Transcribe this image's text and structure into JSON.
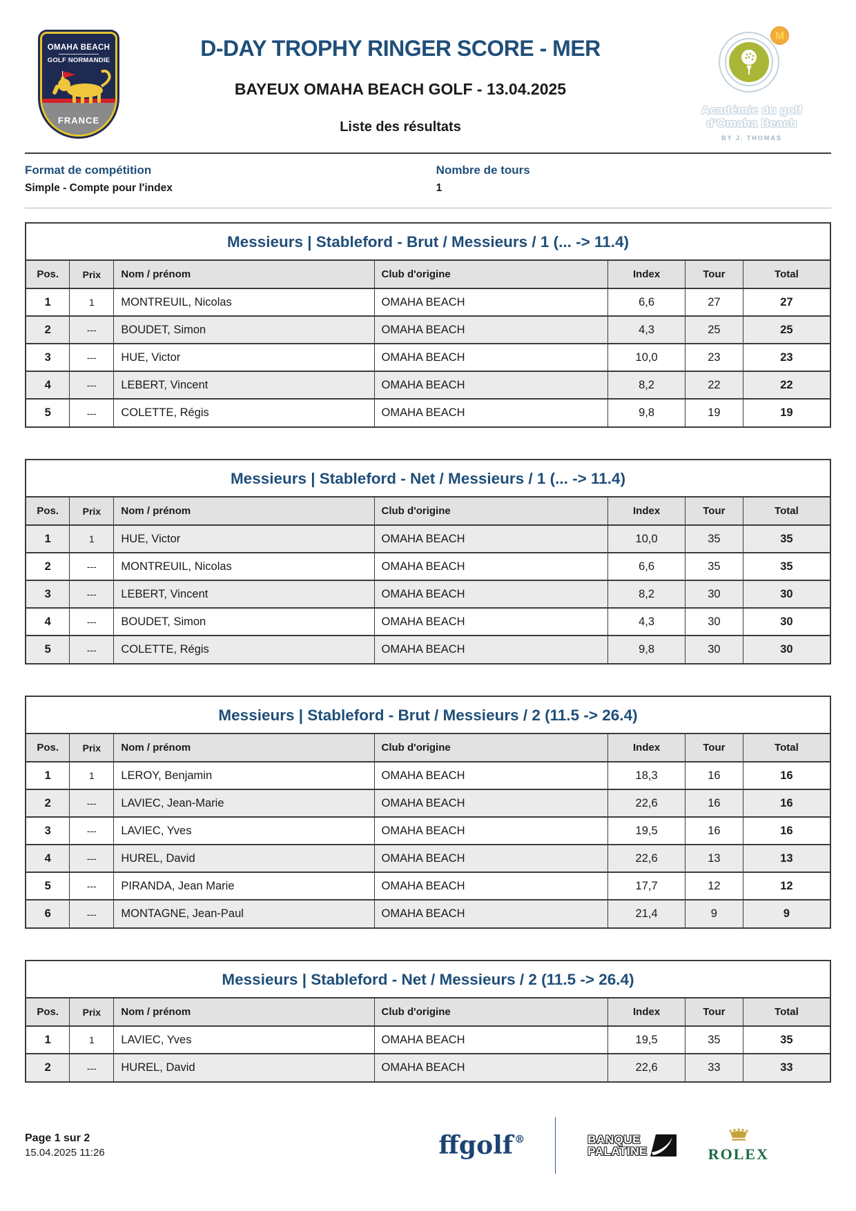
{
  "header": {
    "title": "D-DAY TROPHY RINGER SCORE - MER",
    "subtitle": "BAYEUX OMAHA BEACH GOLF - 13.04.2025",
    "list_label": "Liste des résultats",
    "club_badge": {
      "line1": "OMAHA BEACH",
      "line2": "GOLF NORMANDIE",
      "country": "FRANCE"
    },
    "academy": {
      "m_label": "M",
      "line1": "Académie du golf",
      "line2": "d'Omaha Beach",
      "byline": "BY J. THOMAS"
    }
  },
  "meta": {
    "format_label": "Format de compétition",
    "format_value": "Simple - Compte pour l'index",
    "rounds_label": "Nombre de tours",
    "rounds_value": "1"
  },
  "columns": [
    "Pos.",
    "Prix",
    "Nom / prénom",
    "Club d'origine",
    "Index",
    "Tour",
    "Total"
  ],
  "tables": [
    {
      "title": "Messieurs | Stableford - Brut / Messieurs / 1 (... -> 11.4)",
      "rows": [
        {
          "pos": "1",
          "prix": "1",
          "name": "MONTREUIL, Nicolas",
          "club": "OMAHA BEACH",
          "index": "6,6",
          "tour": "27",
          "total": "27",
          "shade": false
        },
        {
          "pos": "2",
          "prix": "---",
          "name": "BOUDET, Simon",
          "club": "OMAHA BEACH",
          "index": "4,3",
          "tour": "25",
          "total": "25",
          "shade": true
        },
        {
          "pos": "3",
          "prix": "---",
          "name": "HUE, Victor",
          "club": "OMAHA BEACH",
          "index": "10,0",
          "tour": "23",
          "total": "23",
          "shade": false
        },
        {
          "pos": "4",
          "prix": "---",
          "name": "LEBERT, Vincent",
          "club": "OMAHA BEACH",
          "index": "8,2",
          "tour": "22",
          "total": "22",
          "shade": true
        },
        {
          "pos": "5",
          "prix": "---",
          "name": "COLETTE, Régis",
          "club": "OMAHA BEACH",
          "index": "9,8",
          "tour": "19",
          "total": "19",
          "shade": false
        }
      ]
    },
    {
      "title": "Messieurs | Stableford - Net / Messieurs / 1 (... -> 11.4)",
      "rows": [
        {
          "pos": "1",
          "prix": "1",
          "name": "HUE, Victor",
          "club": "OMAHA BEACH",
          "index": "10,0",
          "tour": "35",
          "total": "35",
          "shade": true
        },
        {
          "pos": "2",
          "prix": "---",
          "name": "MONTREUIL, Nicolas",
          "club": "OMAHA BEACH",
          "index": "6,6",
          "tour": "35",
          "total": "35",
          "shade": false
        },
        {
          "pos": "3",
          "prix": "---",
          "name": "LEBERT, Vincent",
          "club": "OMAHA BEACH",
          "index": "8,2",
          "tour": "30",
          "total": "30",
          "shade": true
        },
        {
          "pos": "4",
          "prix": "---",
          "name": "BOUDET, Simon",
          "club": "OMAHA BEACH",
          "index": "4,3",
          "tour": "30",
          "total": "30",
          "shade": false
        },
        {
          "pos": "5",
          "prix": "---",
          "name": "COLETTE, Régis",
          "club": "OMAHA BEACH",
          "index": "9,8",
          "tour": "30",
          "total": "30",
          "shade": true
        }
      ]
    },
    {
      "title": "Messieurs | Stableford - Brut / Messieurs / 2 (11.5 -> 26.4)",
      "rows": [
        {
          "pos": "1",
          "prix": "1",
          "name": "LEROY, Benjamin",
          "club": "OMAHA BEACH",
          "index": "18,3",
          "tour": "16",
          "total": "16",
          "shade": false
        },
        {
          "pos": "2",
          "prix": "---",
          "name": "LAVIEC, Jean-Marie",
          "club": "OMAHA BEACH",
          "index": "22,6",
          "tour": "16",
          "total": "16",
          "shade": true
        },
        {
          "pos": "3",
          "prix": "---",
          "name": "LAVIEC, Yves",
          "club": "OMAHA BEACH",
          "index": "19,5",
          "tour": "16",
          "total": "16",
          "shade": false
        },
        {
          "pos": "4",
          "prix": "---",
          "name": "HUREL, David",
          "club": "OMAHA BEACH",
          "index": "22,6",
          "tour": "13",
          "total": "13",
          "shade": true
        },
        {
          "pos": "5",
          "prix": "---",
          "name": "PIRANDA, Jean Marie",
          "club": "OMAHA BEACH",
          "index": "17,7",
          "tour": "12",
          "total": "12",
          "shade": false
        },
        {
          "pos": "6",
          "prix": "---",
          "name": "MONTAGNE, Jean-Paul",
          "club": "OMAHA BEACH",
          "index": "21,4",
          "tour": "9",
          "total": "9",
          "shade": true
        }
      ]
    },
    {
      "title": "Messieurs | Stableford - Net / Messieurs / 2 (11.5 -> 26.4)",
      "rows": [
        {
          "pos": "1",
          "prix": "1",
          "name": "LAVIEC, Yves",
          "club": "OMAHA BEACH",
          "index": "19,5",
          "tour": "35",
          "total": "35",
          "shade": false
        },
        {
          "pos": "2",
          "prix": "---",
          "name": "HUREL, David",
          "club": "OMAHA BEACH",
          "index": "22,6",
          "tour": "33",
          "total": "33",
          "shade": true
        }
      ]
    }
  ],
  "footer": {
    "page": "Page 1 sur 2",
    "datetime": "15.04.2025 11:26",
    "sponsors": {
      "ffgolf": "ffgolf",
      "banque_line1": "BANQUE",
      "banque_line2": "PALATINE",
      "rolex": "ROLEX"
    }
  },
  "colors": {
    "accent_blue": "#1F4E79",
    "row_shade": "#EBEBEB",
    "header_shade": "#E2E2E2",
    "table_border": "#3B3B3B",
    "rolex_green": "#1D6B42",
    "badge_navy": "#1E2A52",
    "academy_olive": "#A9B637"
  }
}
